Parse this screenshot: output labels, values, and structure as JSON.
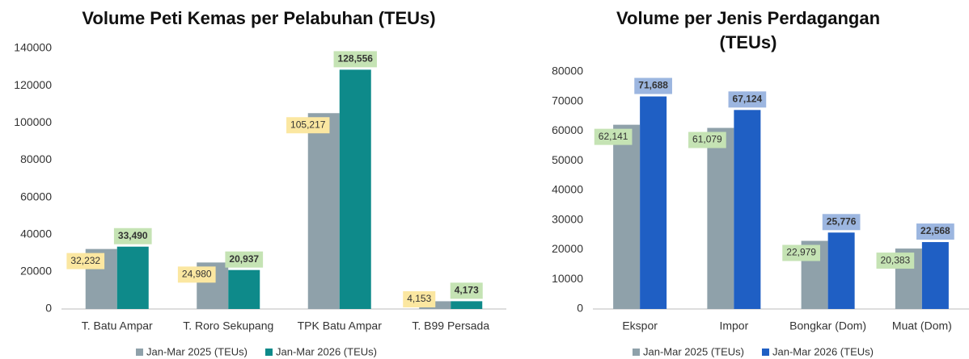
{
  "chart_data": [
    {
      "type": "bar",
      "title": "Volume Peti Kemas per Pelabuhan (TEUs)",
      "categories": [
        "T. Batu Ampar",
        "T. Roro Sekupang",
        "TPK Batu Ampar",
        "T. B99 Persada"
      ],
      "series": [
        {
          "name": "Jan-Mar 2025 (TEUs)",
          "color": "#8fa1aa",
          "label_color": "#fbe7a1",
          "values": [
            32232,
            24980,
            105217,
            4153
          ],
          "value_labels": [
            "32,232",
            "24,980",
            "105,217",
            "4,153"
          ]
        },
        {
          "name": "Jan-Mar 2026 (TEUs)",
          "color": "#0e8a8a",
          "label_color": "#c5e3b4",
          "values": [
            33490,
            20937,
            128556,
            4173
          ],
          "value_labels": [
            "33,490",
            "20,937",
            "128,556",
            "4,173"
          ]
        }
      ],
      "ylim": [
        0,
        140000
      ],
      "yticks": [
        0,
        20000,
        40000,
        60000,
        80000,
        100000,
        120000,
        140000
      ],
      "grid": false,
      "legend": "bottom"
    },
    {
      "type": "bar",
      "title": "Volume per Jenis Perdagangan (TEUs)",
      "categories": [
        "Ekspor",
        "Impor",
        "Bongkar (Dom)",
        "Muat (Dom)"
      ],
      "series": [
        {
          "name": "Jan-Mar 2025 (TEUs)",
          "color": "#8fa1aa",
          "label_color": "#c5e3b4",
          "values": [
            62141,
            61079,
            22979,
            20383
          ],
          "value_labels": [
            "62,141",
            "61,079",
            "22,979",
            "20,383"
          ]
        },
        {
          "name": "Jan-Mar 2026 (TEUs)",
          "color": "#1f5fc4",
          "label_color": "#9cb6e0",
          "values": [
            71688,
            67124,
            25776,
            22568
          ],
          "value_labels": [
            "71,688",
            "67,124",
            "25,776",
            "22,568"
          ]
        }
      ],
      "ylim": [
        0,
        80000
      ],
      "yticks": [
        0,
        10000,
        20000,
        30000,
        40000,
        50000,
        60000,
        70000,
        80000
      ],
      "grid": false,
      "legend": "bottom"
    }
  ]
}
